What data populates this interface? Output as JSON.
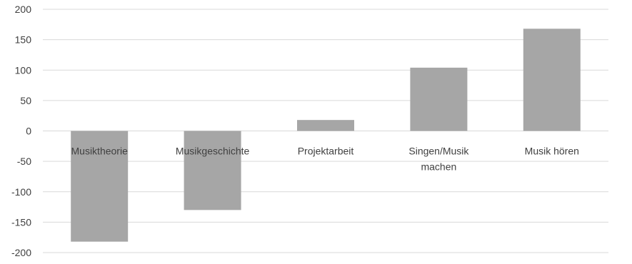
{
  "chart_data": {
    "type": "bar",
    "categories": [
      "Musiktheorie",
      "Musikgeschichte",
      "Projektarbeit",
      "Singen/Musik machen",
      "Musik hören"
    ],
    "category_lines": [
      [
        "Musiktheorie"
      ],
      [
        "Musikgeschichte"
      ],
      [
        "Projektarbeit"
      ],
      [
        "Singen/Musik",
        "machen"
      ],
      [
        "Musik hören"
      ]
    ],
    "values": [
      -182,
      -130,
      18,
      104,
      168
    ],
    "ylim": [
      -200,
      200
    ],
    "yticks": [
      "200",
      "150",
      "100",
      "50",
      "0",
      "-50",
      "-100",
      "-150",
      "-200"
    ],
    "grid": true,
    "legend": "none",
    "title": "",
    "xlabel": "",
    "ylabel": "",
    "colors": {
      "bar": "#a6a6a6",
      "grid": "#d9d9d9",
      "text": "#404040"
    }
  }
}
